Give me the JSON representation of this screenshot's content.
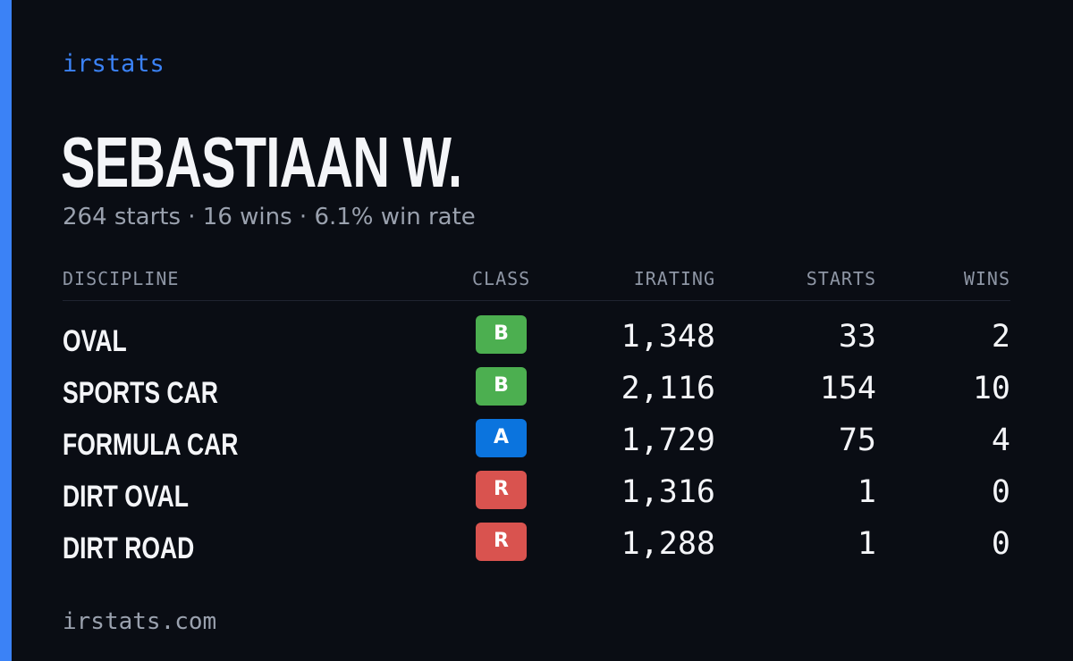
{
  "brand": "irstats",
  "driver_name": "SEBASTIAAN W.",
  "summary": "264 starts · 16 wins · 6.1% win rate",
  "colors": {
    "background": "#0a0d14",
    "accent": "#3b82f6",
    "class_B": "#4caf50",
    "class_A": "#0b74de",
    "class_R": "#d9534f"
  },
  "table": {
    "headers": {
      "discipline": "DISCIPLINE",
      "class": "CLASS",
      "irating": "IRATING",
      "starts": "STARTS",
      "wins": "WINS"
    },
    "rows": [
      {
        "discipline": "OVAL",
        "class": "B",
        "irating": "1,348",
        "starts": "33",
        "wins": "2"
      },
      {
        "discipline": "SPORTS CAR",
        "class": "B",
        "irating": "2,116",
        "starts": "154",
        "wins": "10"
      },
      {
        "discipline": "FORMULA CAR",
        "class": "A",
        "irating": "1,729",
        "starts": "75",
        "wins": "4"
      },
      {
        "discipline": "DIRT OVAL",
        "class": "R",
        "irating": "1,316",
        "starts": "1",
        "wins": "0"
      },
      {
        "discipline": "DIRT ROAD",
        "class": "R",
        "irating": "1,288",
        "starts": "1",
        "wins": "0"
      }
    ]
  },
  "footer": "irstats.com"
}
